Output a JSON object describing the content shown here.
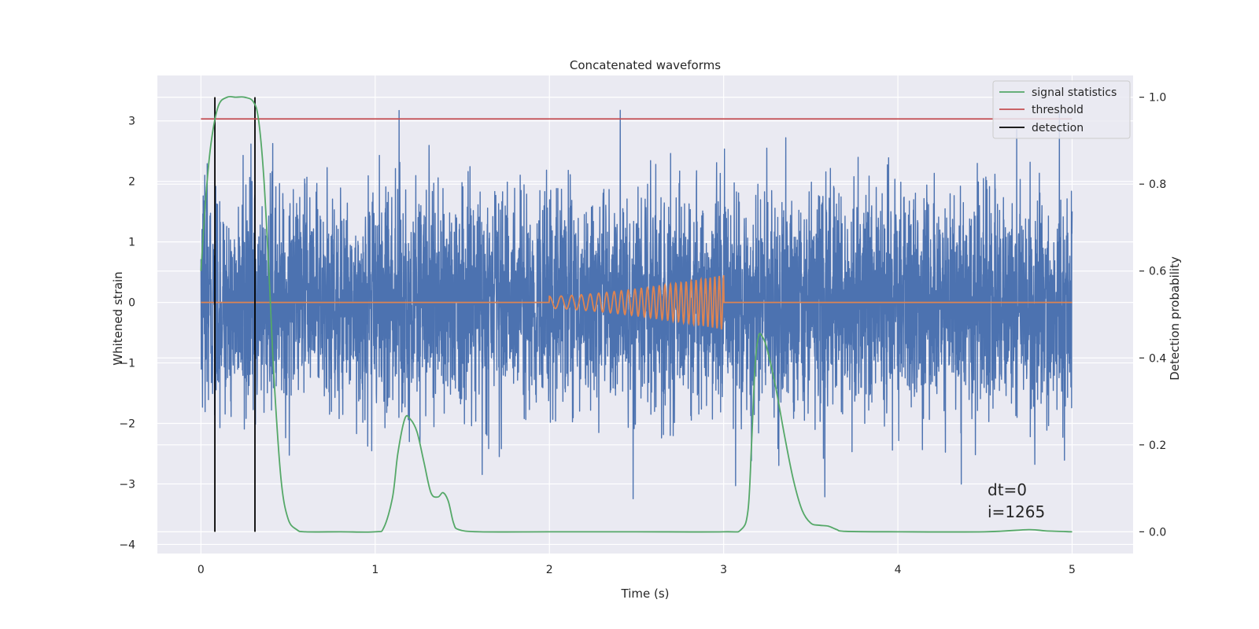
{
  "chart_data": {
    "type": "line",
    "title": "Concatenated waveforms",
    "xlabel": "Time (s)",
    "ylabel": "Whitened strain",
    "ylabel_right": "Detection probability",
    "xlim": [
      -0.25,
      5.35
    ],
    "ylim": [
      -4.15,
      3.75
    ],
    "ylim_right": [
      -0.05,
      1.05
    ],
    "xticks": [
      0,
      1,
      2,
      3,
      4,
      5
    ],
    "yticks": [
      -4,
      -3,
      -2,
      -1,
      0,
      1,
      2,
      3
    ],
    "yticks_right": [
      0.0,
      0.2,
      0.4,
      0.6,
      0.8,
      1.0
    ],
    "ytick_labels": [
      "−4",
      "−3",
      "−2",
      "−1",
      "0",
      "1",
      "2",
      "3"
    ],
    "ytick_right_labels": [
      "0.0",
      "0.2",
      "0.4",
      "0.6",
      "0.8",
      "1.0"
    ],
    "grid": true,
    "legend_position": "top-right",
    "colors": {
      "strain": "#4c72b0",
      "template": "#dd8452",
      "signal_statistics": "#55a868",
      "threshold": "#c44e52",
      "detection": "#000000",
      "plot_background": "#eaeaf2",
      "grid": "#ffffff"
    },
    "series": [
      {
        "name": "signal statistics",
        "axis": "right",
        "x": [
          0.0,
          0.03,
          0.06,
          0.1,
          0.15,
          0.2,
          0.25,
          0.3,
          0.33,
          0.36,
          0.39,
          0.42,
          0.46,
          0.5,
          0.55,
          0.6,
          0.8,
          1.0,
          1.05,
          1.1,
          1.13,
          1.17,
          1.2,
          1.24,
          1.28,
          1.32,
          1.36,
          1.39,
          1.42,
          1.45,
          1.48,
          1.6,
          2.0,
          2.5,
          3.0,
          3.1,
          3.14,
          3.16,
          3.18,
          3.2,
          3.22,
          3.25,
          3.3,
          3.35,
          3.4,
          3.45,
          3.5,
          3.55,
          3.6,
          3.65,
          3.7,
          4.0,
          4.5,
          4.75,
          4.85,
          5.0
        ],
        "y": [
          0.6,
          0.78,
          0.9,
          0.98,
          1.0,
          1.0,
          1.0,
          0.99,
          0.95,
          0.82,
          0.6,
          0.35,
          0.12,
          0.03,
          0.005,
          0.0,
          0.0,
          0.0,
          0.01,
          0.08,
          0.18,
          0.26,
          0.26,
          0.23,
          0.16,
          0.09,
          0.08,
          0.09,
          0.07,
          0.02,
          0.005,
          0.0,
          0.0,
          0.0,
          0.0,
          0.005,
          0.05,
          0.2,
          0.38,
          0.45,
          0.45,
          0.42,
          0.33,
          0.22,
          0.12,
          0.05,
          0.02,
          0.015,
          0.013,
          0.005,
          0.001,
          0.0,
          0.0,
          0.005,
          0.002,
          0.0
        ]
      },
      {
        "name": "threshold",
        "axis": "right",
        "x": [
          0.0,
          5.0
        ],
        "y": [
          0.95,
          0.95
        ]
      },
      {
        "name": "detection",
        "axis": "right",
        "x": [
          0.08,
          0.31
        ],
        "y_range": [
          0.0,
          1.0
        ]
      },
      {
        "name": "",
        "role": "whitened strain noise",
        "axis": "left",
        "x_range": [
          0.0,
          5.0
        ],
        "samples": 5000,
        "std": 0.9,
        "clip": [
          -3.9,
          3.45
        ]
      },
      {
        "name": "",
        "role": "injected chirp template",
        "axis": "left",
        "x_range": [
          0.0,
          5.0
        ],
        "chirp_x_range": [
          2.0,
          3.0
        ],
        "chirp_amp_range": [
          0.1,
          0.45
        ],
        "chirp_freq_range": [
          14,
          40
        ]
      }
    ],
    "annotations": [
      "dt=0",
      "i=1265"
    ]
  }
}
